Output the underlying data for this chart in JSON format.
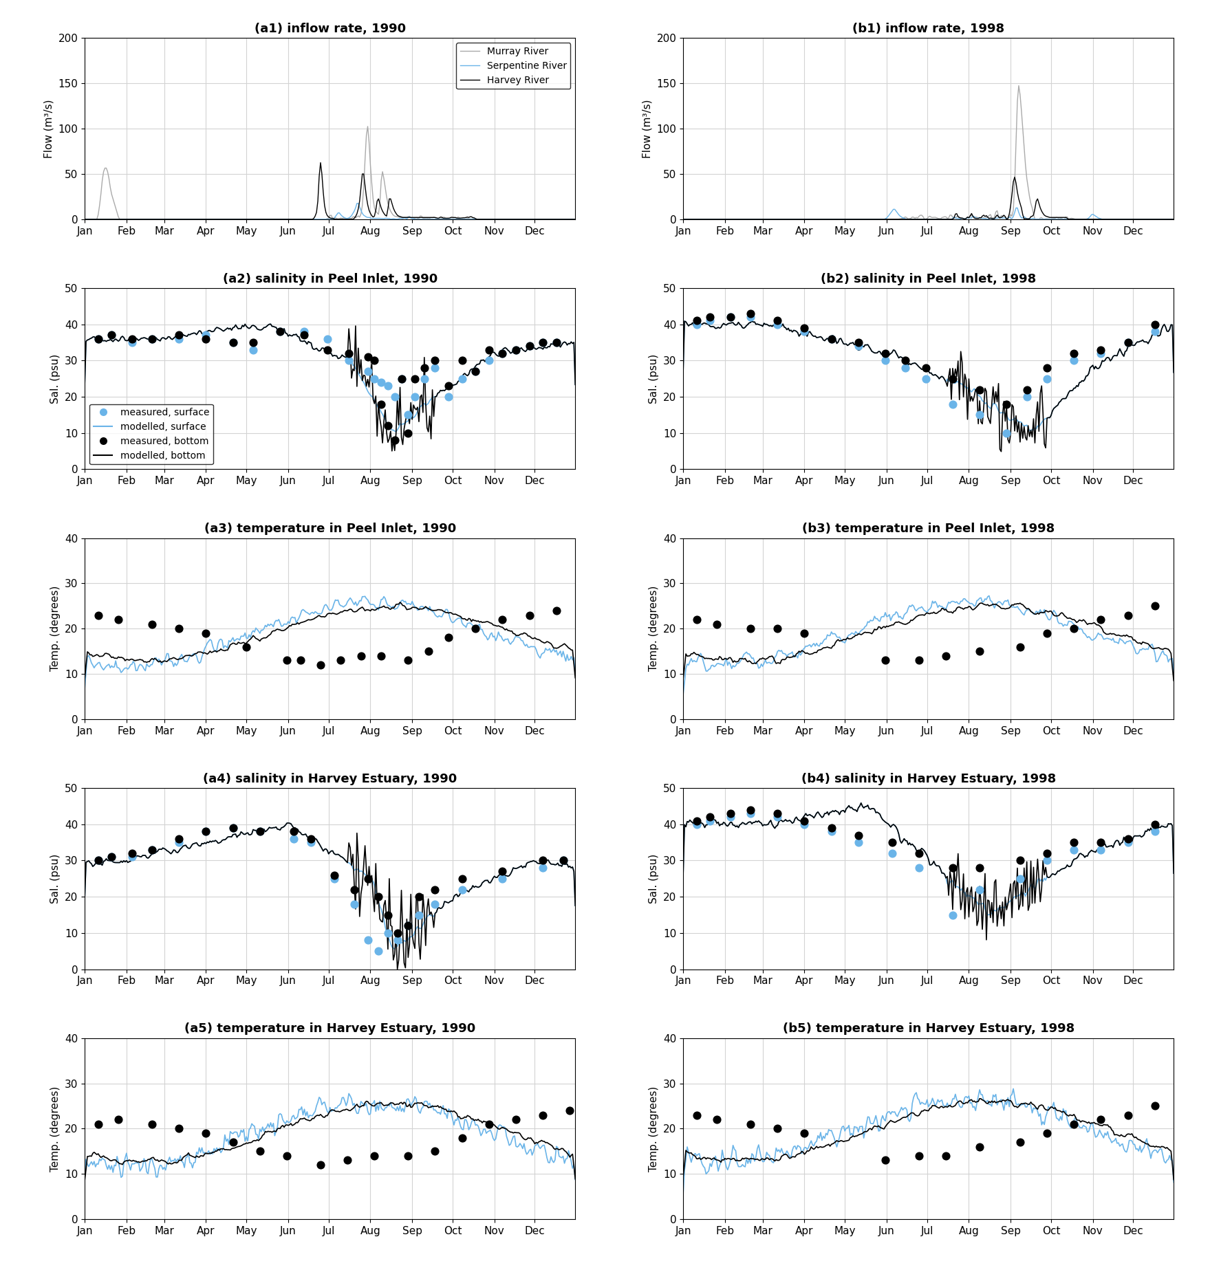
{
  "titles": {
    "a1": "(a1) inflow rate, 1990",
    "b1": "(b1) inflow rate, 1998",
    "a2": "(a2) salinity in Peel Inlet, 1990",
    "b2": "(b2) salinity in Peel Inlet, 1998",
    "a3": "(a3) temperature in Peel Inlet, 1990",
    "b3": "(b3) temperature in Peel Inlet, 1998",
    "a4": "(a4) salinity in Harvey Estuary, 1990",
    "b4": "(b4) salinity in Harvey Estuary, 1998",
    "a5": "(a5) temperature in Harvey Estuary, 1990",
    "b5": "(b5) temperature in Harvey Estuary, 1998"
  },
  "ylabels": {
    "flow": "Flow (m³/s)",
    "sal": "Sal. (psu)",
    "temp": "Temp. (degrees)"
  },
  "ylims": {
    "flow": [
      0,
      200
    ],
    "sal": [
      0,
      50
    ],
    "temp": [
      0,
      40
    ]
  },
  "colors": {
    "murray": "#aaaaaa",
    "serpentine": "#6ab4e8",
    "harvey_river": "#000000",
    "surface_measured": "#6ab4e8",
    "surface_modelled": "#6ab4e8",
    "bottom_measured": "#000000",
    "bottom_modelled": "#000000"
  },
  "legend_flow": [
    "Murray River",
    "Serpentine River",
    "Harvey River"
  ],
  "legend_sal": [
    "measured, surface",
    "modelled, surface",
    "measured, bottom",
    "modelled, bottom"
  ],
  "months": [
    "Jan",
    "Feb",
    "Mar",
    "Apr",
    "May",
    "Jun",
    "Jul",
    "Aug",
    "Sep",
    "Oct",
    "Nov",
    "Dec"
  ]
}
